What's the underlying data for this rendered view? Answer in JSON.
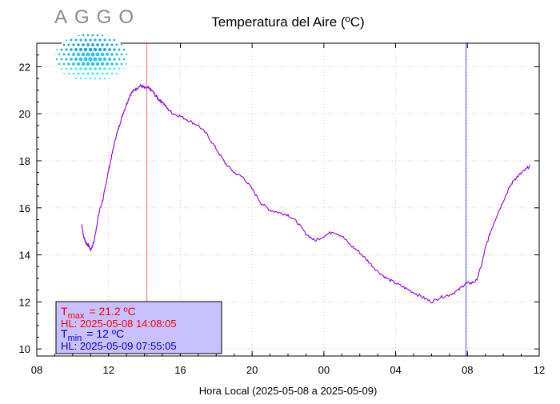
{
  "logo": {
    "text": "AGGO"
  },
  "chart_data": {
    "type": "line",
    "title": "Temperatura del Aire (ºC)",
    "xlabel": "Hora Local (2025-05-08 a 2025-05-09)",
    "ylabel": "",
    "x_tick_labels": [
      "08",
      "12",
      "16",
      "20",
      "00",
      "04",
      "08",
      "12"
    ],
    "x_tick_hours": [
      0,
      4,
      8,
      12,
      16,
      20,
      24,
      28
    ],
    "xlim_hours_from_08": [
      0,
      28
    ],
    "y_ticks": [
      10,
      12,
      14,
      16,
      18,
      20,
      22
    ],
    "ylim": [
      9.7,
      23.0
    ],
    "grid": true,
    "series": [
      {
        "color": "#8a00e0",
        "x_hours_from_08": [
          2.5,
          2.6,
          2.75,
          2.9,
          3.0,
          3.1,
          3.2,
          3.35,
          3.5,
          3.7,
          3.85,
          4.0,
          4.2,
          4.4,
          4.6,
          4.8,
          5.0,
          5.2,
          5.4,
          5.6,
          5.8,
          6.0,
          6.2,
          6.4,
          6.6,
          6.8,
          7.0,
          7.3,
          7.6,
          8.0,
          8.5,
          9.0,
          9.5,
          10.0,
          10.5,
          11.0,
          11.5,
          12.0,
          12.5,
          13.0,
          13.5,
          14.0,
          14.5,
          15.0,
          15.5,
          16.0,
          16.5,
          17.0,
          17.5,
          18.0,
          18.5,
          19.0,
          19.5,
          20.0,
          20.5,
          21.0,
          21.5,
          22.0,
          22.5,
          23.0,
          23.5,
          23.9,
          24.2,
          24.5,
          24.8,
          25.0,
          25.3,
          25.6,
          26.0,
          26.3,
          26.6,
          26.9,
          27.2,
          27.5
        ],
        "y": [
          15.3,
          14.8,
          14.5,
          14.4,
          14.2,
          14.4,
          14.6,
          15.3,
          15.9,
          16.4,
          17.0,
          17.6,
          18.3,
          19.0,
          19.5,
          20.0,
          20.4,
          20.8,
          21.0,
          21.1,
          21.2,
          21.1,
          21.1,
          21.0,
          20.8,
          20.6,
          20.5,
          20.2,
          20.0,
          19.9,
          19.7,
          19.5,
          19.1,
          18.5,
          17.9,
          17.5,
          17.3,
          16.8,
          16.2,
          15.9,
          15.8,
          15.7,
          15.4,
          14.9,
          14.6,
          14.8,
          15.0,
          14.8,
          14.4,
          14.1,
          13.7,
          13.3,
          13.0,
          12.8,
          12.6,
          12.4,
          12.2,
          12.0,
          12.2,
          12.3,
          12.5,
          12.8,
          12.8,
          12.9,
          13.6,
          14.3,
          15.0,
          15.6,
          16.3,
          16.8,
          17.2,
          17.4,
          17.6,
          17.8
        ]
      }
    ],
    "vlines": [
      {
        "x_hours_from_08": 6.135,
        "color": "#ff6060"
      },
      {
        "x_hours_from_08": 23.92,
        "color": "#5050ff"
      }
    ],
    "legend": {
      "position": "bottom-left",
      "background": "#c8c0ff",
      "tmax": {
        "prefix": "T",
        "sub": "max",
        "value": "= 21.2 ºC",
        "hl": "HL: 2025-05-08 14:08:05",
        "color": "#ff0000"
      },
      "tmin": {
        "prefix": "T",
        "sub": "min",
        "value": "= 12 ºC",
        "hl": "HL: 2025-05-09 07:55:05",
        "color": "#0000cc"
      }
    }
  }
}
